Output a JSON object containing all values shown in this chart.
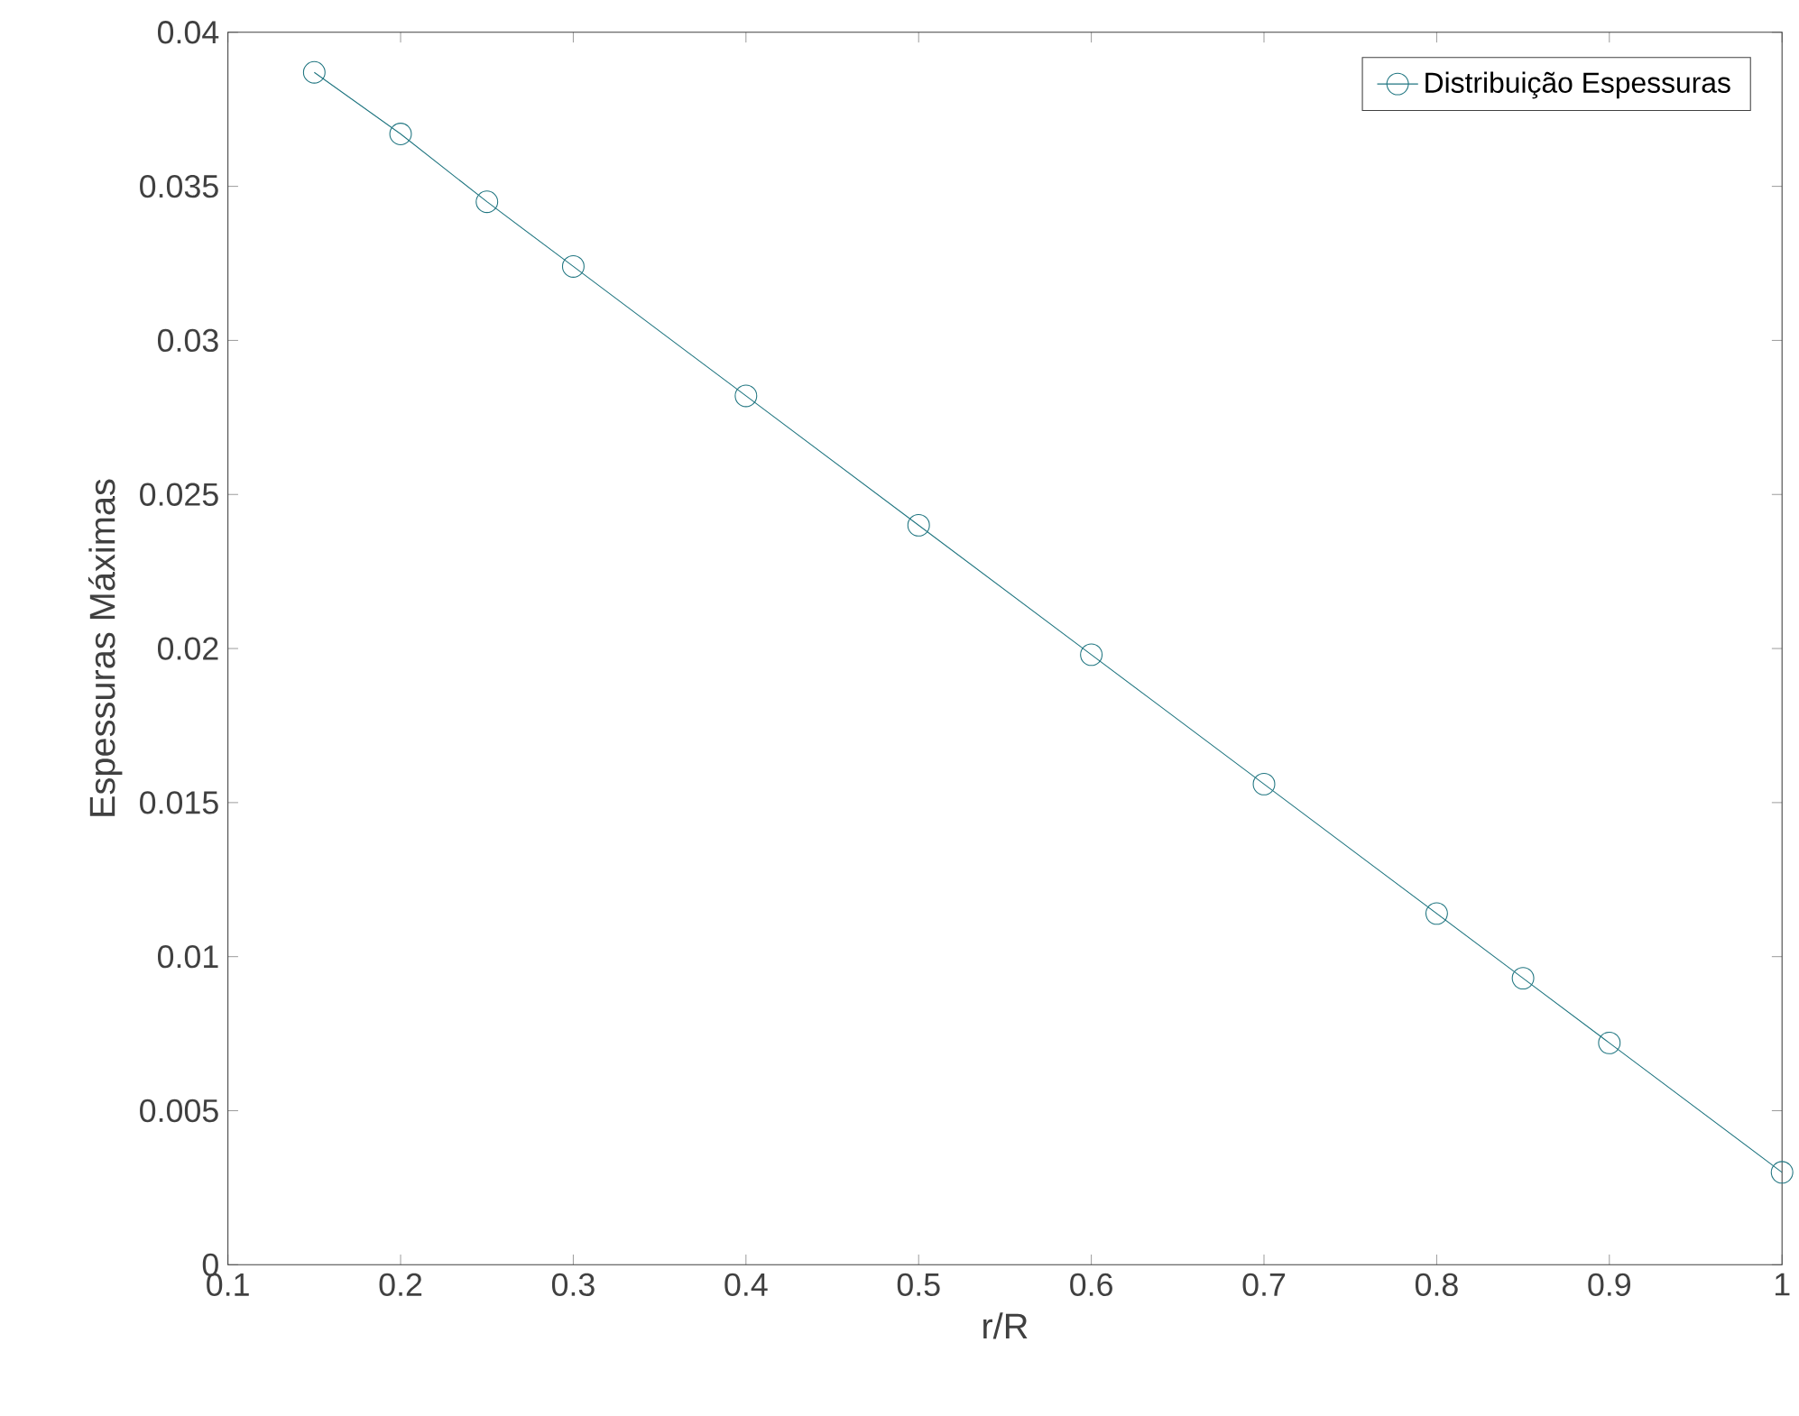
{
  "chart_data": {
    "type": "line",
    "xlabel": "r/R",
    "ylabel": "Espessuras Máximas",
    "x": [
      0.15,
      0.2,
      0.25,
      0.3,
      0.4,
      0.5,
      0.6,
      0.7,
      0.8,
      0.85,
      0.9,
      1.0
    ],
    "series": [
      {
        "name": "Distribuição Espessuras",
        "color": "#1f7580",
        "values": [
          0.0387,
          0.0367,
          0.0345,
          0.0324,
          0.0282,
          0.024,
          0.0198,
          0.0156,
          0.0114,
          0.0093,
          0.0072,
          0.003
        ]
      }
    ],
    "xlim": [
      0.1,
      1
    ],
    "ylim": [
      0,
      0.04
    ],
    "xticks": [
      0.1,
      0.2,
      0.3,
      0.4,
      0.5,
      0.6,
      0.7,
      0.8,
      0.9,
      1
    ],
    "yticks": [
      0,
      0.005,
      0.01,
      0.015,
      0.02,
      0.025,
      0.03,
      0.035,
      0.04
    ],
    "marker": "circle",
    "line_style": "solid",
    "legend": "top right",
    "grid": false
  }
}
